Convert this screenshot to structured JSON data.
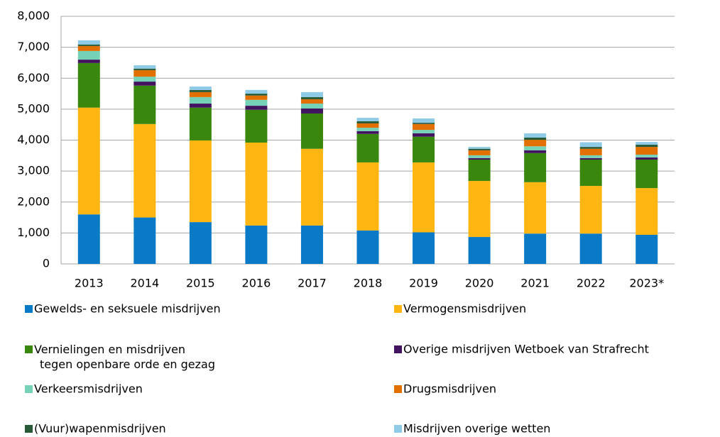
{
  "chart_data": {
    "type": "stacked_bar",
    "categories": [
      "2013",
      "2014",
      "2015",
      "2016",
      "2017",
      "2018",
      "2019",
      "2020",
      "2021",
      "2022",
      "2023*"
    ],
    "ylim": [
      0,
      8000
    ],
    "yticks": [
      0,
      {
        "value": 1000,
        "label": "1,000"
      },
      {
        "value": 2000,
        "label": "2,000"
      },
      {
        "value": 3000,
        "label": "3,000"
      },
      {
        "value": 4000,
        "label": "4,000"
      },
      {
        "value": 5000,
        "label": "5,000"
      },
      {
        "value": 6000,
        "label": "6,000"
      },
      {
        "value": 7000,
        "label": "7,000"
      },
      {
        "value": 8000,
        "label": "8,000"
      }
    ],
    "grid": true,
    "series": [
      {
        "name": "Gewelds- en seksuele misdrijven",
        "color": "#0a7ac6",
        "values": [
          1600,
          1500,
          1350,
          1240,
          1240,
          1080,
          1020,
          870,
          980,
          980,
          940
        ]
      },
      {
        "name": "Vermogensmisdrijven",
        "color": "#ffb612",
        "values": [
          3450,
          3020,
          2640,
          2680,
          2480,
          2200,
          2260,
          1810,
          1660,
          1540,
          1510
        ]
      },
      {
        "name": "Vernielingen en misdrijven\ntegen openbare orde en gezag",
        "color": "#39870c",
        "values": [
          1440,
          1240,
          1060,
          1060,
          1140,
          920,
          830,
          690,
          940,
          850,
          920
        ]
      },
      {
        "name": "Overige misdrijven Wetboek van Strafrecht",
        "color": "#42145f",
        "values": [
          110,
          130,
          130,
          130,
          160,
          90,
          110,
          50,
          90,
          50,
          70
        ]
      },
      {
        "name": "Verkeersmisdrijven",
        "color": "#76d2b6",
        "values": [
          280,
          160,
          210,
          190,
          160,
          110,
          110,
          90,
          130,
          90,
          90
        ]
      },
      {
        "name": "Drugsmisdrijven",
        "color": "#e17000",
        "values": [
          160,
          210,
          160,
          140,
          140,
          140,
          190,
          160,
          210,
          210,
          250
        ]
      },
      {
        "name": "(Vuur)wapenmisdrijven",
        "color": "#275937",
        "values": [
          50,
          50,
          70,
          60,
          70,
          70,
          40,
          50,
          70,
          60,
          70
        ]
      },
      {
        "name": "Misdrijven overige wetten",
        "color": "#8fcae7",
        "values": [
          135,
          110,
          110,
          120,
          160,
          110,
          140,
          60,
          140,
          150,
          90
        ]
      }
    ]
  }
}
